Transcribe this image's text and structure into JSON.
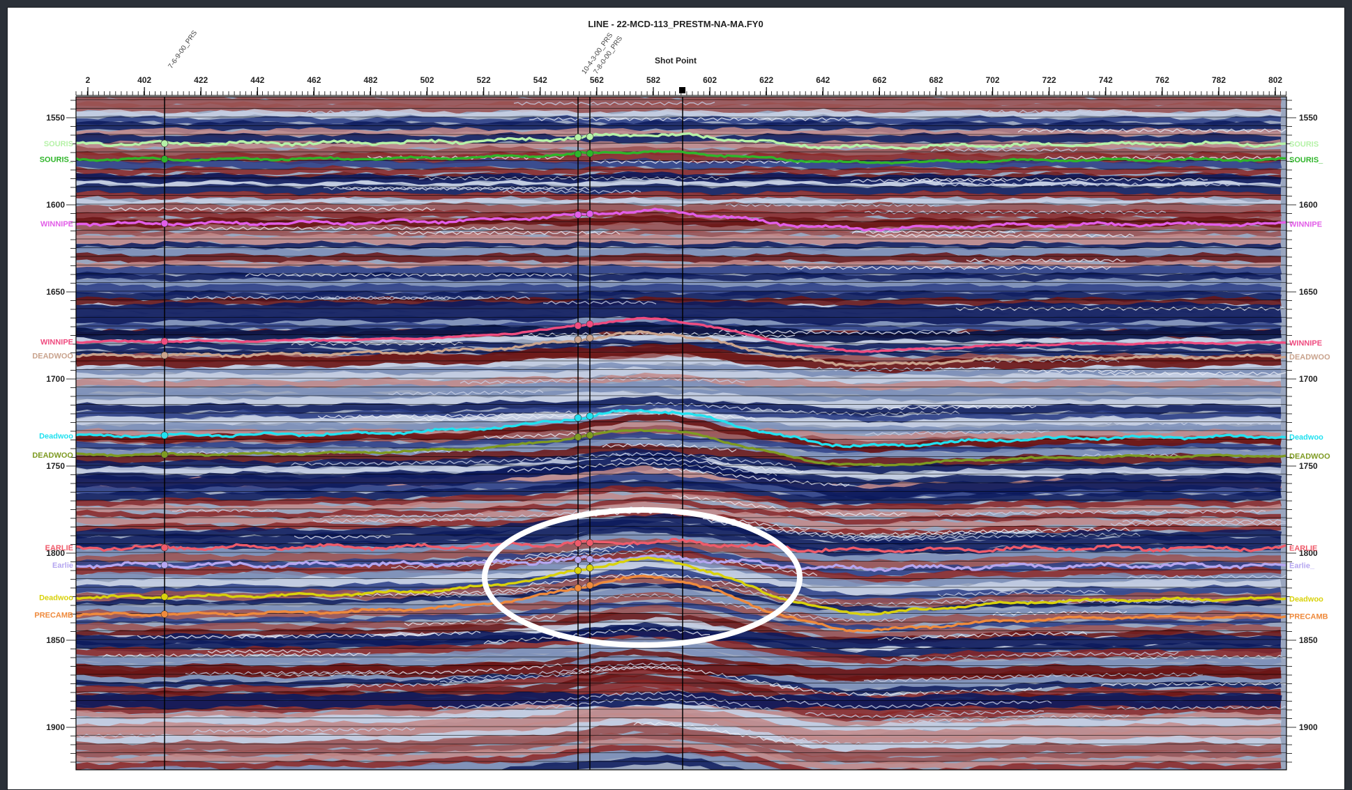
{
  "title": "LINE - 22-MCD-113_PRESTM-NA-MA.FY0",
  "shot_point_label": "Shot Point",
  "shot_points": [
    "2",
    "402",
    "422",
    "442",
    "462",
    "482",
    "502",
    "522",
    "542",
    "562",
    "582",
    "602",
    "622",
    "642",
    "662",
    "682",
    "702",
    "722",
    "742",
    "762",
    "782",
    "802"
  ],
  "time_values": [
    1550,
    1600,
    1650,
    1700,
    1750,
    1800,
    1850,
    1900
  ],
  "well_labels": [
    "7-6-9-00_PRS",
    "10-4-3-00_PRS",
    "7-8-0-00_PRS"
  ],
  "horizons": [
    {
      "left": "SOURIS",
      "right": "SOURIS",
      "color": "#b6f2a8"
    },
    {
      "left": "SOURIS_",
      "right": "SOURIS_",
      "color": "#2fb52a"
    },
    {
      "left": "WINNIPE",
      "right": "WINNIPE",
      "color": "#e25ee8"
    },
    {
      "left": "WINNIPE",
      "right": "WINNIPE",
      "color": "#ef4c80"
    },
    {
      "left": "DEADWOO",
      "right": "DEADWOO",
      "color": "#c9a38d"
    },
    {
      "left": "Deadwoo",
      "right": "Deadwoo",
      "color": "#22e1f0"
    },
    {
      "left": "DEADWOO",
      "right": "DEADWOO",
      "color": "#7e9a22"
    },
    {
      "left": "EARLIE",
      "right": "EARLIE",
      "color": "#ef5b6b"
    },
    {
      "left": "Earlie",
      "right": "Earlie_",
      "color": "#b5a6f0"
    },
    {
      "left": "Deadwoo",
      "right": "Deadwoo",
      "color": "#d9d20c"
    },
    {
      "left": "PRECAMB",
      "right": "PRECAMB",
      "color": "#ef8a3c"
    }
  ],
  "colors": {
    "trough": "#0c1a5c",
    "peak": "#6a1414",
    "highlight_ellipse": "#ffffff"
  }
}
